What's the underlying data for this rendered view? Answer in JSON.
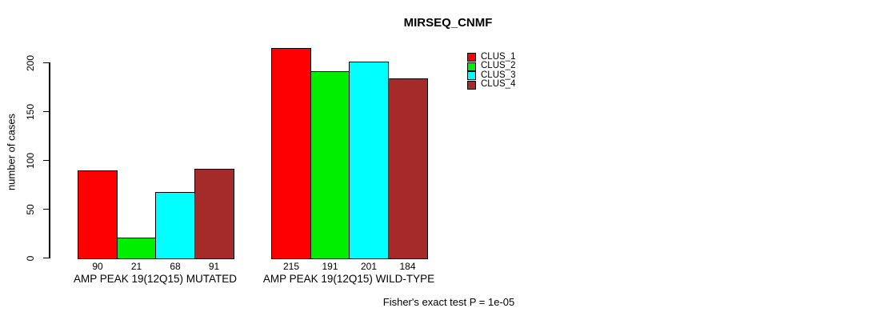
{
  "title": "MIRSEQ_CNMF",
  "footer": "Fisher's exact test P = 1e-05",
  "colors": {
    "clus_1": "#FF0000",
    "clus_2": "#00EE00",
    "clus_3": "#00FFFF",
    "clus_4": "#A52A2A",
    "axis": "#000000",
    "background": "#FFFFFF"
  },
  "chart_data": {
    "type": "bar",
    "title": "MIRSEQ_CNMF",
    "xlabel": "",
    "ylabel": "number of cases",
    "ylim": [
      0,
      220
    ],
    "yticks": [
      0,
      50,
      100,
      150,
      200
    ],
    "grid": false,
    "legend_position": "top-right",
    "categories": [
      "AMP PEAK 19(12Q15) MUTATED",
      "AMP PEAK 19(12Q15) WILD-TYPE"
    ],
    "series": [
      {
        "name": "CLUS_1",
        "color": "#FF0000",
        "values": [
          90,
          215
        ]
      },
      {
        "name": "CLUS_2",
        "color": "#00EE00",
        "values": [
          21,
          191
        ]
      },
      {
        "name": "CLUS_3",
        "color": "#00FFFF",
        "values": [
          68,
          201
        ]
      },
      {
        "name": "CLUS_4",
        "color": "#A52A2A",
        "values": [
          91,
          184
        ]
      }
    ],
    "bar_value_labels": [
      [
        90,
        21,
        68,
        91
      ],
      [
        215,
        191,
        201,
        184
      ]
    ],
    "annotation": "Fisher's exact test P = 1e-05"
  }
}
